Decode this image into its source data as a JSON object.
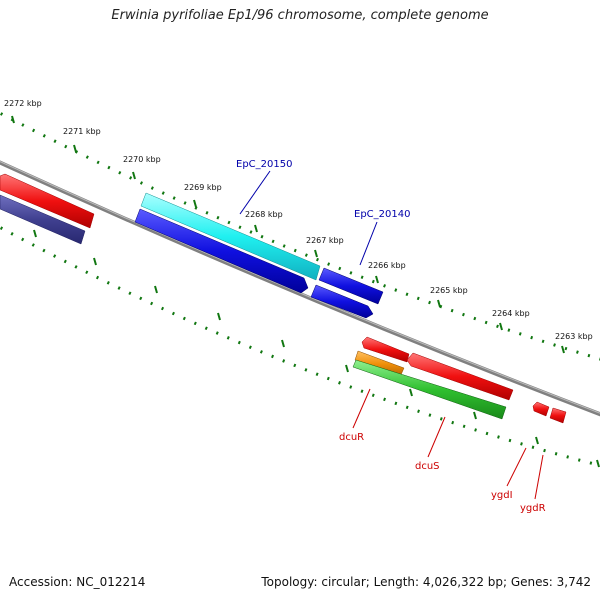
{
  "title": "Erwinia pyrifoliae Ep1/96 chromosome, complete genome",
  "footer": {
    "accession": "Accession: NC_012214",
    "summary": "Topology: circular; Length: 4,026,322 bp; Genes: 3,742"
  },
  "ticks": [
    "2272 kbp",
    "2271 kbp",
    "2270 kbp",
    "2269 kbp",
    "2268 kbp",
    "2267 kbp",
    "2266 kbp",
    "2265 kbp",
    "2264 kbp",
    "2263 kbp"
  ],
  "genes": {
    "epc20150": "EpC_20150",
    "epc20140": "EpC_20140",
    "dcuR": "dcuR",
    "dcuS": "dcuS",
    "ygdI": "ygdI",
    "ygdR": "ygdR"
  },
  "colors": {
    "backbone": "#808080",
    "cds_blue": "#1010e0",
    "cds_cyan": "#20f0f0",
    "cds_red": "#f01010",
    "cds_orange": "#f0900a",
    "cds_green": "#30c030",
    "cds_purple": "#404090",
    "tick_green": "#117711",
    "label_blue": "#0000aa",
    "label_red": "#cc0000"
  }
}
